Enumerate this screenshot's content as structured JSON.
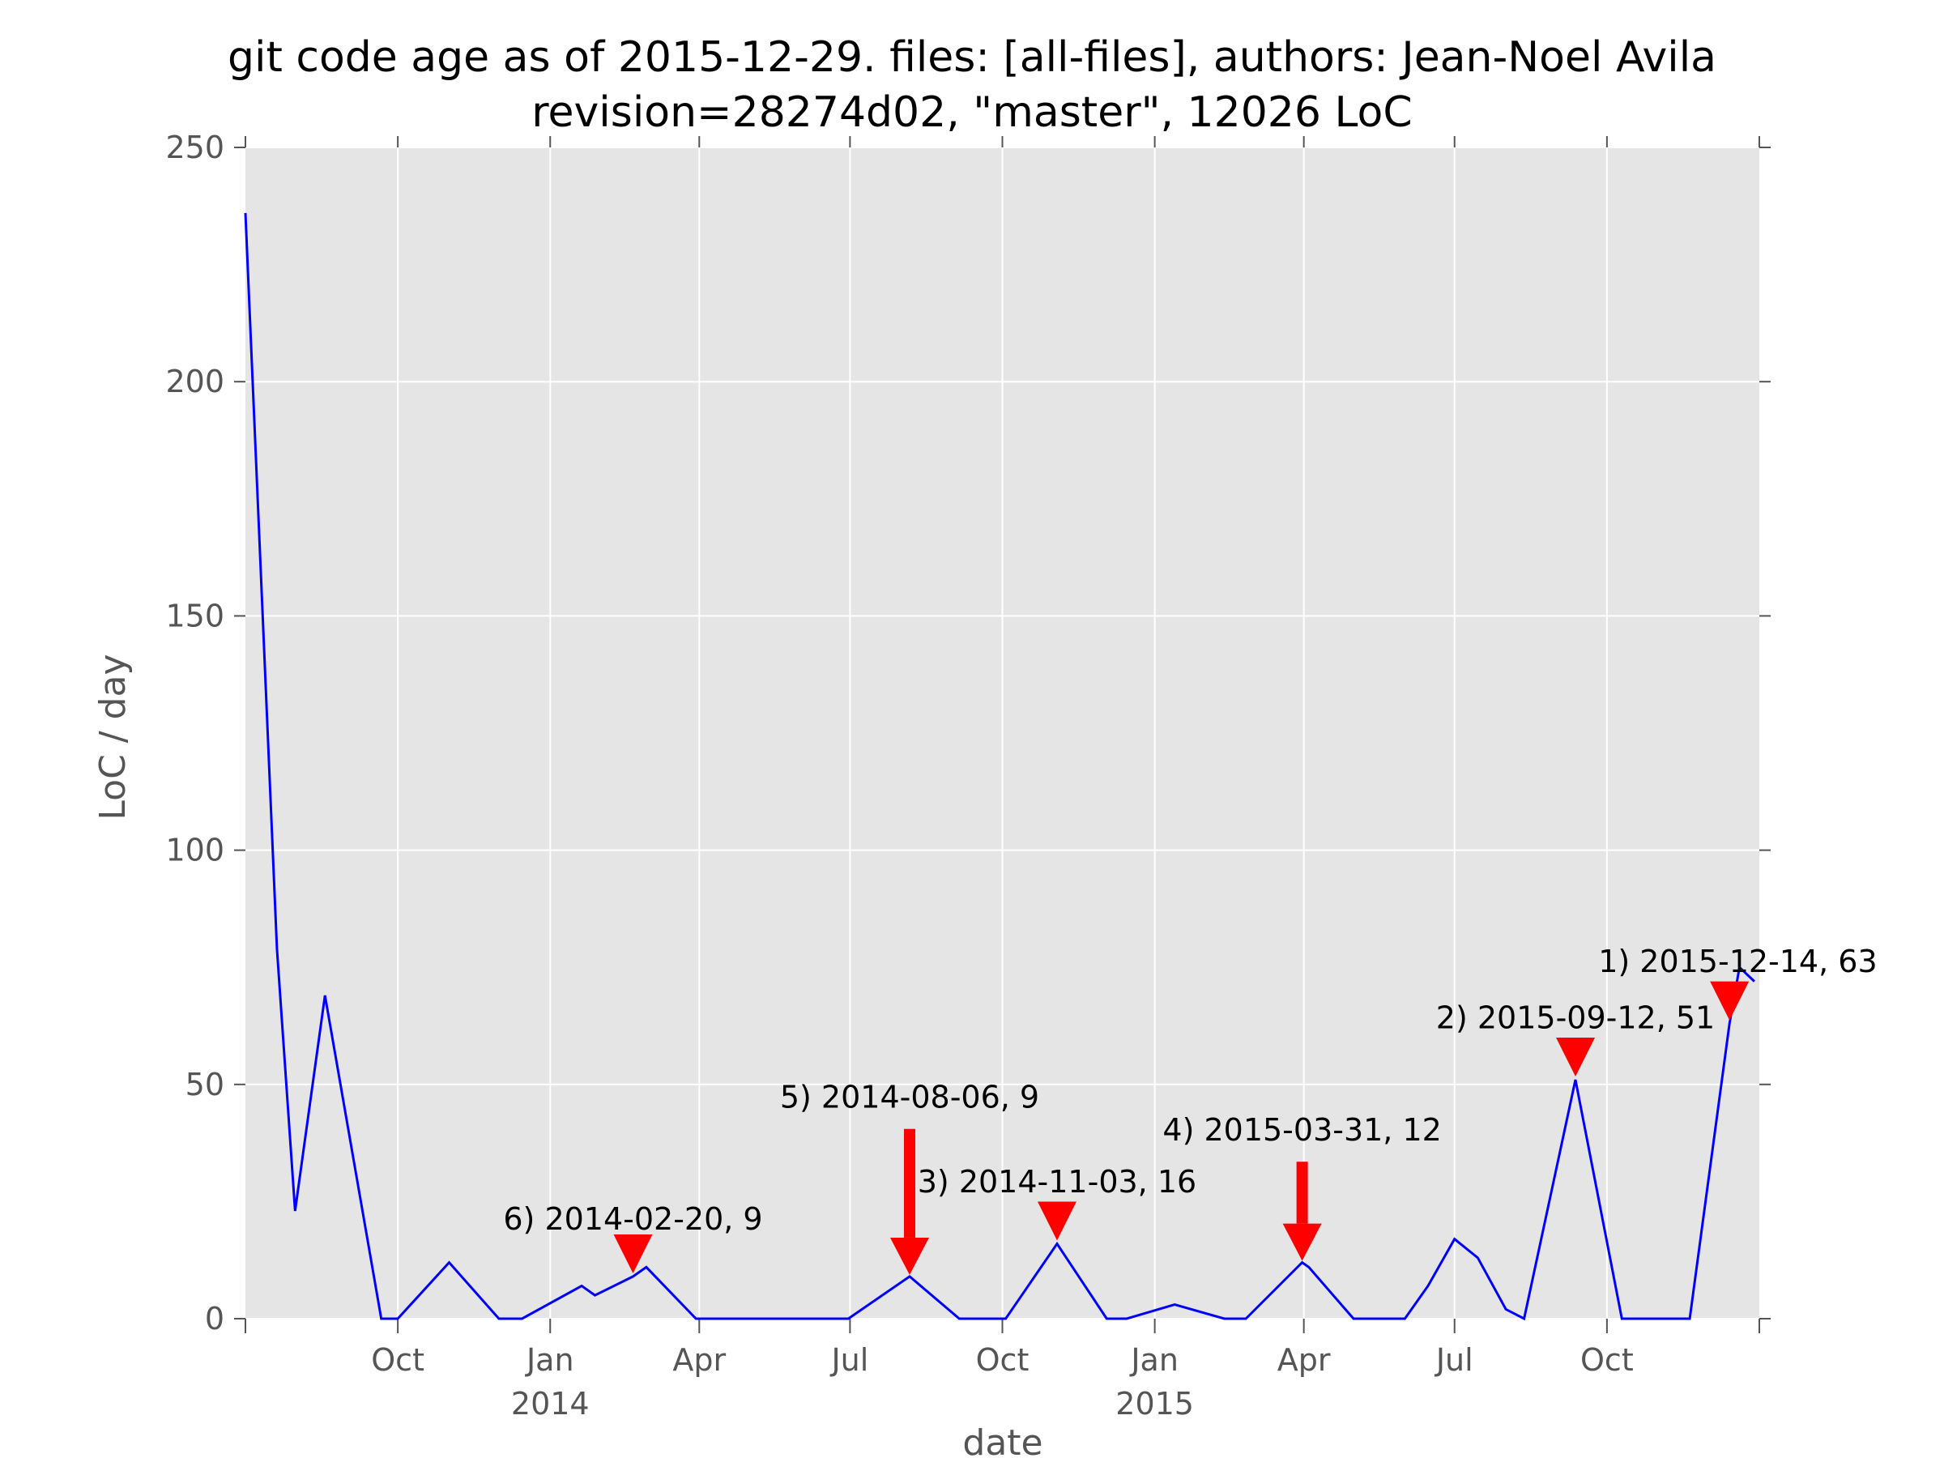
{
  "chart_data": {
    "type": "line",
    "title": "git code age as of 2015-12-29. files: [all-files], authors: Jean-Noel Avila",
    "subtitle": "revision=28274d02, \"master\", 12026 LoC",
    "xlabel": "date",
    "ylabel": "LoC / day",
    "xlim": [
      "2013-07-01",
      "2016-01-01"
    ],
    "ylim": [
      0,
      250
    ],
    "grid": true,
    "background_color": "#e5e5e5",
    "line_color": "#0000ff",
    "marker_color": "#ff0000",
    "y_ticks": [
      {
        "value": 0,
        "label": "0"
      },
      {
        "value": 50,
        "label": "50"
      },
      {
        "value": 100,
        "label": "100"
      },
      {
        "value": 150,
        "label": "150"
      },
      {
        "value": 200,
        "label": "200"
      },
      {
        "value": 250,
        "label": "250"
      }
    ],
    "x_ticks": [
      {
        "date": "2013-10-01",
        "label": "Oct",
        "label2": ""
      },
      {
        "date": "2014-01-01",
        "label": "Jan",
        "label2": "2014"
      },
      {
        "date": "2014-04-01",
        "label": "Apr",
        "label2": ""
      },
      {
        "date": "2014-07-01",
        "label": "Jul",
        "label2": ""
      },
      {
        "date": "2014-10-01",
        "label": "Oct",
        "label2": ""
      },
      {
        "date": "2015-01-01",
        "label": "Jan",
        "label2": "2015"
      },
      {
        "date": "2015-04-01",
        "label": "Apr",
        "label2": ""
      },
      {
        "date": "2015-07-01",
        "label": "Jul",
        "label2": ""
      },
      {
        "date": "2015-10-01",
        "label": "Oct",
        "label2": ""
      }
    ],
    "series": [
      {
        "x": [
          "2013-07-01",
          "2013-07-20",
          "2013-07-31",
          "2013-08-18",
          "2013-09-21",
          "2013-10-01",
          "2013-11-01",
          "2013-12-01",
          "2013-12-15",
          "2014-01-20",
          "2014-01-28",
          "2014-02-20",
          "2014-02-28",
          "2014-03-30",
          "2014-06-30",
          "2014-08-06",
          "2014-09-05",
          "2014-10-03",
          "2014-11-03",
          "2014-12-03",
          "2014-12-15",
          "2015-01-13",
          "2015-02-12",
          "2015-02-25",
          "2015-03-31",
          "2015-04-04",
          "2015-05-01",
          "2015-06-01",
          "2015-06-15",
          "2015-07-01",
          "2015-07-15",
          "2015-08-01",
          "2015-08-12",
          "2015-09-12",
          "2015-10-10",
          "2015-11-20",
          "2015-12-14",
          "2015-12-20",
          "2015-12-29"
        ],
        "values": [
          236,
          79,
          23,
          69,
          0,
          0,
          12,
          0,
          0,
          7,
          5,
          9,
          11,
          0,
          0,
          9,
          0,
          0,
          16,
          0,
          0,
          3,
          0,
          0,
          12,
          11,
          0,
          0,
          7,
          17,
          13,
          2,
          0,
          51,
          0,
          0,
          63,
          75,
          72
        ]
      }
    ],
    "annotations": [
      {
        "label": "1) 2015-12-14, 63",
        "date": "2015-12-14",
        "value": 63,
        "text_date": "2015-12-19",
        "text_value": 74,
        "style": "head"
      },
      {
        "label": "2) 2015-09-12, 51",
        "date": "2015-09-12",
        "value": 51,
        "text_date": "2015-09-12",
        "text_value": 62,
        "style": "head"
      },
      {
        "label": "3) 2014-11-03, 16",
        "date": "2014-11-03",
        "value": 16,
        "text_date": "2014-11-03",
        "text_value": 27,
        "style": "head"
      },
      {
        "label": "4) 2015-03-31, 12",
        "date": "2015-03-31",
        "value": 12,
        "text_date": "2015-03-31",
        "text_value": 38,
        "style": "arrow"
      },
      {
        "label": "5) 2014-08-06, 9",
        "date": "2014-08-06",
        "value": 9,
        "text_date": "2014-08-06",
        "text_value": 45,
        "style": "arrow"
      },
      {
        "label": "6) 2014-02-20, 9",
        "date": "2014-02-20",
        "value": 9,
        "text_date": "2014-02-20",
        "text_value": 19,
        "style": "head"
      }
    ]
  }
}
